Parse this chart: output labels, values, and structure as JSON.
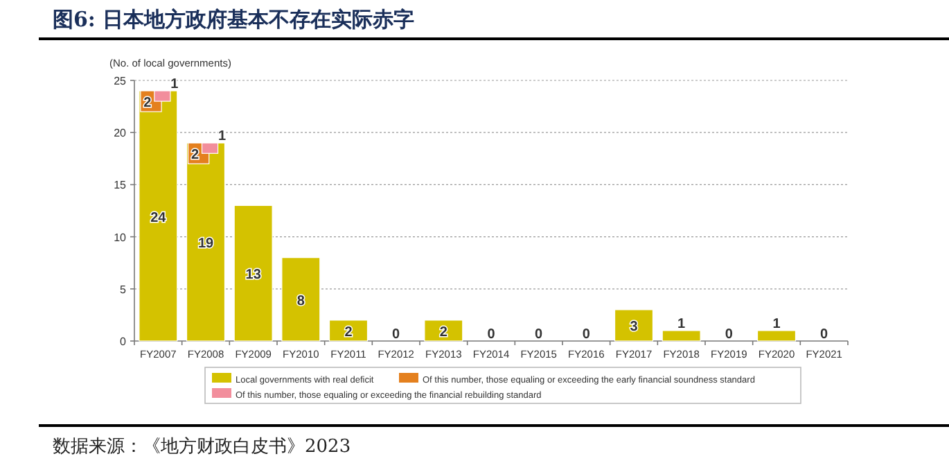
{
  "chart_data": {
    "type": "bar",
    "title": "图6:  日本地方政府基本不存在实际赤字",
    "ylabel": "(No. of local governments)",
    "categories": [
      "FY2007",
      "FY2008",
      "FY2009",
      "FY2010",
      "FY2011",
      "FY2012",
      "FY2013",
      "FY2014",
      "FY2015",
      "FY2016",
      "FY2017",
      "FY2018",
      "FY2019",
      "FY2020",
      "FY2021"
    ],
    "series": [
      {
        "name": "Local governments with real deficit",
        "color": "#d4c200",
        "values": [
          24,
          19,
          13,
          8,
          2,
          0,
          2,
          0,
          0,
          0,
          3,
          1,
          0,
          1,
          0
        ]
      },
      {
        "name": "Of this number, those equaling or exceeding the early financial soundness standard",
        "color": "#e4801e",
        "values": [
          2,
          2,
          null,
          null,
          null,
          null,
          null,
          null,
          null,
          null,
          null,
          null,
          null,
          null,
          null
        ],
        "base": [
          22,
          17,
          null,
          null,
          null,
          null,
          null,
          null,
          null,
          null,
          null,
          null,
          null,
          null,
          null
        ]
      },
      {
        "name": "Of this number, those equaling or exceeding the financial rebuilding standard",
        "color": "#f28e9c",
        "values": [
          1,
          1,
          null,
          null,
          null,
          null,
          null,
          null,
          null,
          null,
          null,
          null,
          null,
          null,
          null
        ],
        "base": [
          23,
          18,
          null,
          null,
          null,
          null,
          null,
          null,
          null,
          null,
          null,
          null,
          null,
          null,
          null
        ]
      }
    ],
    "ylim": [
      0,
      25
    ],
    "yticks": [
      0,
      5,
      10,
      15,
      20,
      25
    ],
    "grid": "y",
    "legend": "bottom",
    "data_labels": true,
    "annotations": [
      "数据来源：《地方财政白皮书》2023"
    ]
  }
}
